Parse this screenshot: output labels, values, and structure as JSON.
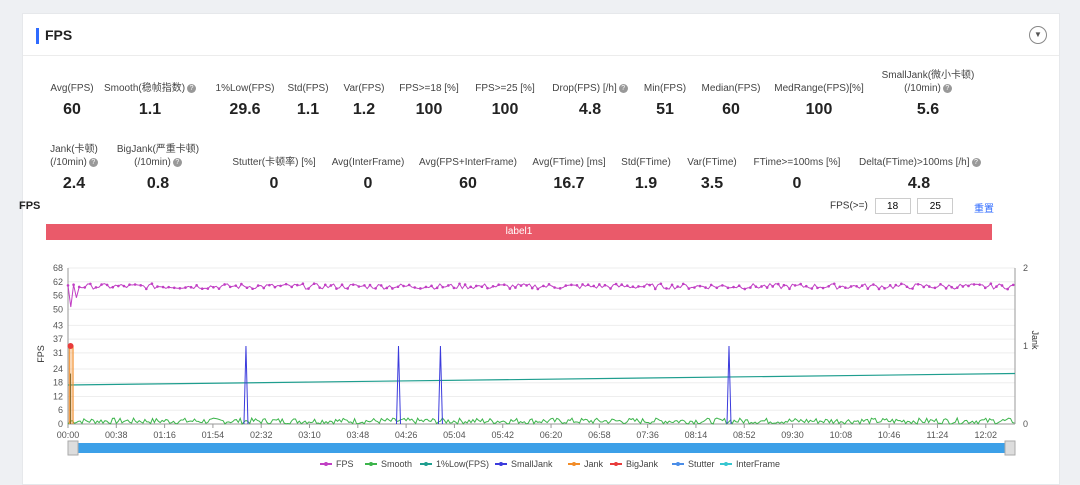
{
  "panel": {
    "title": "FPS",
    "collapse_icon": "chevron-down-icon"
  },
  "stats_row1": [
    {
      "label": "Avg(FPS)",
      "value": "60",
      "help": false
    },
    {
      "label": "Smooth(稳帧指数)",
      "value": "1.1",
      "help": true
    },
    {
      "label": "1%Low(FPS)",
      "value": "29.6",
      "help": false
    },
    {
      "label": "Std(FPS)",
      "value": "1.1",
      "help": false
    },
    {
      "label": "Var(FPS)",
      "value": "1.2",
      "help": false
    },
    {
      "label": "FPS>=18 [%]",
      "value": "100",
      "help": false
    },
    {
      "label": "FPS>=25 [%]",
      "value": "100",
      "help": false
    },
    {
      "label": "Drop(FPS) [/h]",
      "value": "4.8",
      "help": true
    },
    {
      "label": "Min(FPS)",
      "value": "51",
      "help": false
    },
    {
      "label": "Median(FPS)",
      "value": "60",
      "help": false
    },
    {
      "label": "MedRange(FPS)[%]",
      "value": "100",
      "help": false
    },
    {
      "label": "SmallJank(微小卡顿)",
      "label2": "(/10min)",
      "value": "5.6",
      "help": true
    }
  ],
  "stats_row2": [
    {
      "label": "Jank(卡顿)",
      "label2": "(/10min)",
      "value": "2.4",
      "help": true
    },
    {
      "label": "BigJank(严重卡顿)",
      "label2": "(/10min)",
      "value": "0.8",
      "help": true
    },
    {
      "label": "Stutter(卡顿率) [%]",
      "value": "0",
      "help": false
    },
    {
      "label": "Avg(InterFrame)",
      "value": "0",
      "help": false
    },
    {
      "label": "Avg(FPS+InterFrame)",
      "value": "60",
      "help": false
    },
    {
      "label": "Avg(FTime) [ms]",
      "value": "16.7",
      "help": false
    },
    {
      "label": "Std(FTime)",
      "value": "1.9",
      "help": false
    },
    {
      "label": "Var(FTime)",
      "value": "3.5",
      "help": false
    },
    {
      "label": "FTime>=100ms [%]",
      "value": "0",
      "help": false
    },
    {
      "label": "Delta(FTime)>100ms [/h]",
      "value": "4.8",
      "help": true
    }
  ],
  "chart_controls": {
    "title": "FPS",
    "threshold_label": "FPS(>=)",
    "threshold1": "18",
    "threshold2": "25",
    "reset_label": "重置"
  },
  "chart_data": {
    "type": "line",
    "label_band": "label1",
    "ylabel": "FPS",
    "y2label": "Jank",
    "yticks": [
      "0",
      "6",
      "12",
      "18",
      "24",
      "31",
      "37",
      "43",
      "50",
      "56",
      "62",
      "68"
    ],
    "ylim": [
      0,
      68
    ],
    "y2ticks": [
      "0",
      "1",
      "2"
    ],
    "y2lim": [
      0,
      2
    ],
    "xticks": [
      "00:00",
      "00:38",
      "01:16",
      "01:54",
      "02:32",
      "03:10",
      "03:48",
      "04:26",
      "05:04",
      "05:42",
      "06:20",
      "06:58",
      "07:36",
      "08:14",
      "08:52",
      "09:30",
      "10:08",
      "10:46",
      "11:24",
      "12:02"
    ],
    "duration_s": 745,
    "series": [
      {
        "name": "FPS",
        "color": "#c13fc4",
        "description": "approx 60 throughout, dips to 51 near start"
      },
      {
        "name": "Smooth",
        "color": "#3cb44b"
      },
      {
        "name": "1%Low(FPS)",
        "color": "#1f9e8f"
      },
      {
        "name": "SmallJank",
        "color": "#3b3bdc"
      },
      {
        "name": "Jank",
        "color": "#f28c28"
      },
      {
        "name": "BigJank",
        "color": "#e83b3b"
      },
      {
        "name": "Stutter",
        "color": "#4a8de8"
      },
      {
        "name": "InterFrame",
        "color": "#37c6d0"
      }
    ],
    "fps_dips": [
      {
        "x": 3,
        "y": 51
      },
      {
        "x": 7,
        "y": 55
      }
    ],
    "smalljank_spikes_s": [
      140,
      260,
      293,
      520
    ],
    "jank_spike_s": [
      1,
      4
    ],
    "bigjank_point": {
      "x": 2,
      "y": 34
    },
    "trend_line": {
      "name": "1%Low(FPS)",
      "start": 17,
      "end": 22
    }
  },
  "scroll": {
    "label": "time-range-slider"
  }
}
